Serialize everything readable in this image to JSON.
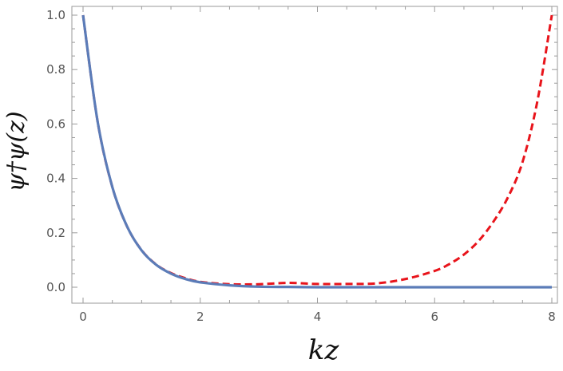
{
  "chart_data": {
    "type": "line",
    "title": "",
    "xlabel": "kz",
    "ylabel": "ψ†ψ(z)",
    "xlim": [
      0,
      8
    ],
    "ylim": [
      0,
      1.0
    ],
    "grid": false,
    "x_ticks": [
      "0",
      "2",
      "4",
      "6",
      "8"
    ],
    "y_ticks": [
      "0.0",
      "0.2",
      "0.4",
      "0.6",
      "0.8",
      "1.0"
    ],
    "series": [
      {
        "style": "dashed",
        "color": "#e8141b",
        "x": [
          0,
          0.25,
          0.5,
          0.75,
          1.0,
          1.25,
          1.5,
          1.75,
          2.0,
          2.5,
          3.0,
          3.5,
          4.0,
          4.5,
          5.0,
          5.5,
          6.0,
          6.25,
          6.5,
          6.75,
          7.0,
          7.25,
          7.5,
          7.75,
          8.0
        ],
        "y": [
          1.0,
          0.607,
          0.368,
          0.224,
          0.136,
          0.083,
          0.052,
          0.033,
          0.02,
          0.011,
          0.011,
          0.016,
          0.012,
          0.012,
          0.014,
          0.03,
          0.06,
          0.085,
          0.12,
          0.17,
          0.24,
          0.33,
          0.46,
          0.68,
          1.0
        ]
      },
      {
        "style": "solid",
        "color": "#5b7cb8",
        "x": [
          0,
          0.25,
          0.5,
          0.75,
          1.0,
          1.25,
          1.5,
          1.75,
          2.0,
          2.5,
          3.0,
          3.5,
          4.0,
          5.0,
          6.0,
          7.0,
          8.0
        ],
        "y": [
          1.0,
          0.607,
          0.368,
          0.224,
          0.135,
          0.082,
          0.05,
          0.03,
          0.018,
          0.007,
          0.002,
          0.001,
          0.0,
          0.0,
          0.0,
          0.0,
          0.0
        ]
      }
    ]
  }
}
